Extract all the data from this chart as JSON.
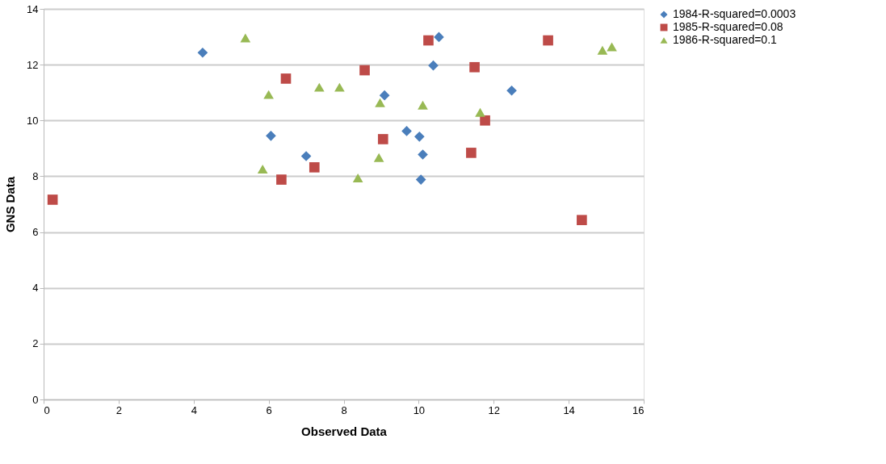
{
  "chart_data": {
    "type": "scatter",
    "xlabel": "Observed Data",
    "ylabel": "GNS Data",
    "xlim": [
      0,
      16
    ],
    "ylim": [
      0,
      14
    ],
    "xticks": [
      0,
      2,
      4,
      6,
      8,
      10,
      12,
      14,
      16
    ],
    "yticks": [
      0,
      2,
      4,
      6,
      8,
      10,
      12,
      14
    ],
    "grid": "y",
    "legend": "right",
    "series": [
      {
        "name": "1984-R-squared=0.0003",
        "color": "#4a7ebb",
        "marker": "diamond",
        "x": [
          4.24,
          6.06,
          7.0,
          10.54,
          10.39,
          9.09,
          12.48,
          9.68,
          10.02,
          10.11,
          10.06
        ],
        "values": [
          12.43,
          9.45,
          8.72,
          12.99,
          11.97,
          10.9,
          11.07,
          9.62,
          9.42,
          8.78,
          7.88
        ]
      },
      {
        "name": "1985-R-squared=0.08",
        "color": "#be4b48",
        "marker": "square",
        "x": [
          0.24,
          6.46,
          6.34,
          7.22,
          10.26,
          13.45,
          8.56,
          11.49,
          11.77,
          9.05,
          11.4,
          14.35
        ],
        "values": [
          7.16,
          11.5,
          7.88,
          8.32,
          12.87,
          12.87,
          11.8,
          11.91,
          10.0,
          9.33,
          8.84,
          6.43
        ]
      },
      {
        "name": "1986-R-squared=0.1",
        "color": "#98b954",
        "marker": "triangle",
        "x": [
          5.38,
          6.0,
          7.35,
          7.89,
          5.84,
          14.9,
          15.15,
          8.97,
          10.11,
          11.64,
          8.94,
          8.38
        ],
        "values": [
          12.96,
          10.93,
          11.19,
          11.19,
          8.26,
          12.52,
          12.64,
          10.64,
          10.55,
          10.29,
          8.67,
          7.94
        ]
      }
    ]
  }
}
